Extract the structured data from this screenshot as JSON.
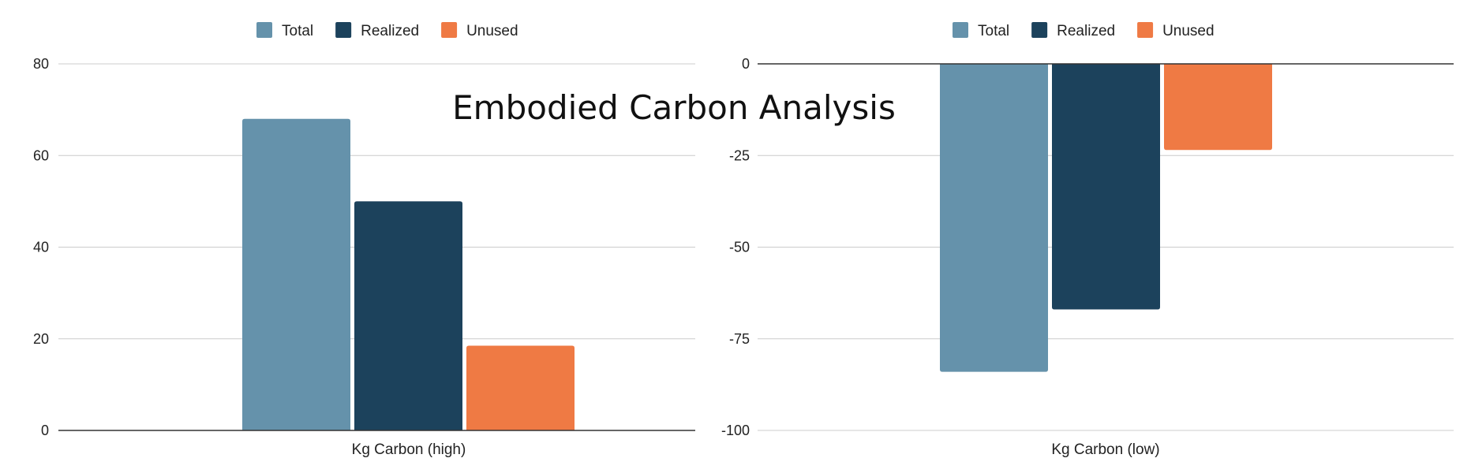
{
  "title": "Embodied Carbon Analysis",
  "colors": {
    "total": "#6592ab",
    "realized": "#1c425c",
    "unused": "#ef7a44"
  },
  "chart_data": [
    {
      "type": "bar",
      "categories": [
        "Kg Carbon (high)"
      ],
      "series": [
        {
          "name": "Total",
          "values": [
            68
          ]
        },
        {
          "name": "Realized",
          "values": [
            50
          ]
        },
        {
          "name": "Unused",
          "values": [
            18.5
          ]
        }
      ],
      "ylim": [
        0,
        80
      ],
      "yticks": [
        "80",
        "60",
        "40",
        "20",
        "0"
      ],
      "ytick_values": [
        80,
        60,
        40,
        20,
        0
      ],
      "legend": "top",
      "grid": true
    },
    {
      "type": "bar",
      "categories": [
        "Kg Carbon (low)"
      ],
      "series": [
        {
          "name": "Total",
          "values": [
            -84
          ]
        },
        {
          "name": "Realized",
          "values": [
            -67
          ]
        },
        {
          "name": "Unused",
          "values": [
            -23.5
          ]
        }
      ],
      "ylim": [
        -100,
        0
      ],
      "yticks": [
        "0",
        "-25",
        "-50",
        "-75",
        "-100"
      ],
      "ytick_values": [
        0,
        -25,
        -50,
        -75,
        -100
      ],
      "legend": "top",
      "grid": true
    }
  ]
}
